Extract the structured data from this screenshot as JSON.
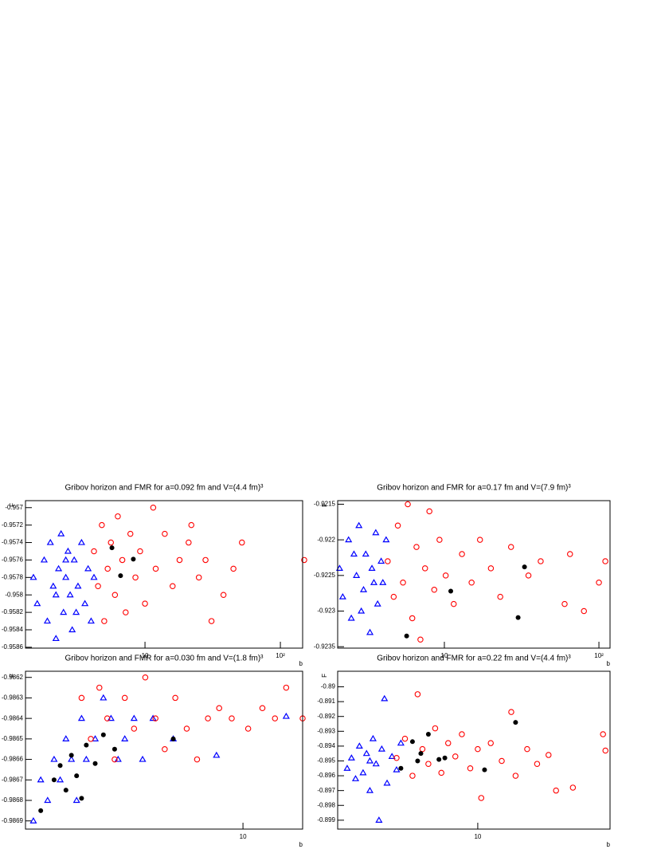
{
  "chart_data": [
    {
      "type": "scatter",
      "title": "Gribov horizon and FMR for a=0.092 fm and V=(4.4 fm)³",
      "x_label": "b",
      "y_label": "F",
      "xscale": "log",
      "xlim": [
        1.31,
        146
      ],
      "xticks": [
        {
          "value": 10,
          "label": "10"
        },
        {
          "value": 100,
          "label": "10²"
        }
      ],
      "ylim": [
        -0.95861,
        -0.95692
      ],
      "yticks": [
        -0.957,
        -0.9572,
        -0.9574,
        -0.9576,
        -0.9578,
        -0.958,
        -0.9582,
        -0.9584,
        -0.9586
      ],
      "series": [
        {
          "color": "#0000ff",
          "marker": "triangle",
          "x": [
            1.5,
            1.6,
            1.8,
            1.9,
            2.0,
            2.1,
            2.2,
            2.3,
            2.4,
            2.5,
            2.6,
            2.7,
            2.8,
            2.9,
            3.0,
            3.2,
            3.4,
            3.6,
            3.8,
            4.0,
            4.2,
            2.2,
            2.6,
            3.1
          ],
          "values": [
            -0.9578,
            -0.9581,
            -0.9576,
            -0.9583,
            -0.9574,
            -0.9579,
            -0.9585,
            -0.9577,
            -0.9573,
            -0.9582,
            -0.9578,
            -0.9575,
            -0.958,
            -0.9584,
            -0.9576,
            -0.9579,
            -0.9574,
            -0.9581,
            -0.9577,
            -0.9583,
            -0.9578,
            -0.958,
            -0.9576,
            -0.9582
          ]
        },
        {
          "color": "#ff0000",
          "marker": "circle",
          "x": [
            4.2,
            4.5,
            4.8,
            5.0,
            5.3,
            5.6,
            6.0,
            6.3,
            6.8,
            7.2,
            7.8,
            8.5,
            9.2,
            10,
            11.5,
            12,
            14,
            16,
            18,
            21,
            25,
            28,
            31,
            38,
            45,
            52,
            150,
            22
          ],
          "values": [
            -0.9575,
            -0.9579,
            -0.9572,
            -0.9583,
            -0.9577,
            -0.9574,
            -0.958,
            -0.9571,
            -0.9576,
            -0.9582,
            -0.9573,
            -0.9578,
            -0.9575,
            -0.9581,
            -0.957,
            -0.9577,
            -0.9573,
            -0.9579,
            -0.9576,
            -0.9574,
            -0.9578,
            -0.9576,
            -0.9583,
            -0.958,
            -0.9577,
            -0.9574,
            -0.9576,
            -0.9572
          ]
        },
        {
          "color": "#000000",
          "marker": "dot",
          "x": [
            5.7,
            6.6,
            8.2
          ],
          "values": [
            -0.95746,
            -0.95778,
            -0.95759
          ]
        }
      ]
    },
    {
      "type": "scatter",
      "title": "Gribov horizon and FMR for a=0.17 fm and V=(7.9 fm)³",
      "x_label": "b",
      "y_label": "F",
      "xscale": "log",
      "xlim": [
        2.04,
        118
      ],
      "xticks": [
        {
          "value": 10,
          "label": "10"
        },
        {
          "value": 100,
          "label": "10²"
        }
      ],
      "ylim": [
        -0.92352,
        -0.92145
      ],
      "yticks": [
        -0.9215,
        -0.922,
        -0.9225,
        -0.923,
        -0.9235
      ],
      "series": [
        {
          "color": "#0000ff",
          "marker": "triangle",
          "x": [
            2.1,
            2.2,
            2.4,
            2.5,
            2.7,
            2.8,
            3.0,
            3.1,
            3.3,
            3.4,
            3.6,
            3.7,
            3.9,
            4.0,
            4.2,
            2.9,
            3.5,
            2.6
          ],
          "values": [
            -0.9224,
            -0.9228,
            -0.922,
            -0.9231,
            -0.9225,
            -0.9218,
            -0.9227,
            -0.9222,
            -0.9233,
            -0.9224,
            -0.9219,
            -0.9229,
            -0.9223,
            -0.9226,
            -0.922,
            -0.923,
            -0.9226,
            -0.9222
          ]
        },
        {
          "color": "#ff0000",
          "marker": "circle",
          "x": [
            4.3,
            4.7,
            5.0,
            5.4,
            5.8,
            6.2,
            6.6,
            7.0,
            7.5,
            8.0,
            8.6,
            9.3,
            10.2,
            11.5,
            13,
            15,
            17,
            20,
            23,
            27,
            35,
            42,
            60,
            65,
            80,
            100,
            110
          ],
          "values": [
            -0.9223,
            -0.9228,
            -0.9218,
            -0.9226,
            -0.9215,
            -0.9231,
            -0.9221,
            -0.9234,
            -0.9224,
            -0.9216,
            -0.9227,
            -0.922,
            -0.9225,
            -0.9229,
            -0.9222,
            -0.9226,
            -0.922,
            -0.9224,
            -0.9228,
            -0.9221,
            -0.9225,
            -0.9223,
            -0.9229,
            -0.9222,
            -0.923,
            -0.9226,
            -0.9223
          ]
        },
        {
          "color": "#000000",
          "marker": "dot",
          "x": [
            5.7,
            11,
            30,
            33
          ],
          "values": [
            -0.92335,
            -0.92272,
            -0.92309,
            -0.92238
          ]
        }
      ]
    },
    {
      "type": "scatter",
      "title": "Gribov horizon and FMR for a=0.030 fm and V=(1.8 fm)³",
      "x_label": "b",
      "y_label": "F",
      "xscale": "log",
      "xlim": [
        1.3,
        17.5
      ],
      "xticks": [
        {
          "value": 10,
          "label": "10"
        }
      ],
      "ylim": [
        -0.98694,
        -0.98617
      ],
      "yticks": [
        -0.9862,
        -0.9863,
        -0.9864,
        -0.9865,
        -0.9866,
        -0.9867,
        -0.9868,
        -0.9869
      ],
      "series": [
        {
          "color": "#0000ff",
          "marker": "triangle",
          "x": [
            1.4,
            1.5,
            1.6,
            1.7,
            1.8,
            1.9,
            2.0,
            2.1,
            2.2,
            2.3,
            2.5,
            2.7,
            2.9,
            3.1,
            3.3,
            3.6,
            3.9,
            4.3,
            5.2,
            7.8,
            15
          ],
          "values": [
            -0.9869,
            -0.9867,
            -0.9868,
            -0.9866,
            -0.9867,
            -0.9865,
            -0.9866,
            -0.9868,
            -0.9864,
            -0.9866,
            -0.9865,
            -0.9863,
            -0.9864,
            -0.9866,
            -0.9865,
            -0.9864,
            -0.9866,
            -0.9864,
            -0.9865,
            -0.98658,
            -0.98639
          ]
        },
        {
          "color": "#ff0000",
          "marker": "circle",
          "x": [
            2.2,
            2.4,
            2.6,
            2.8,
            3.0,
            3.3,
            3.6,
            4.0,
            4.4,
            4.8,
            5.3,
            5.9,
            6.5,
            7.2,
            8.0,
            9.0,
            10.5,
            12,
            13.5,
            15,
            17.5
          ],
          "values": [
            -0.9863,
            -0.9865,
            -0.98625,
            -0.9864,
            -0.9866,
            -0.9863,
            -0.98645,
            -0.9862,
            -0.9864,
            -0.98655,
            -0.9863,
            -0.98645,
            -0.9866,
            -0.9864,
            -0.98635,
            -0.9864,
            -0.98645,
            -0.98635,
            -0.9864,
            -0.98625,
            -0.9864
          ]
        },
        {
          "color": "#000000",
          "marker": "dot",
          "x": [
            1.5,
            1.7,
            1.8,
            1.9,
            2.0,
            2.1,
            2.2,
            2.3,
            2.5,
            2.7,
            3.0,
            5.2
          ],
          "values": [
            -0.98685,
            -0.9867,
            -0.98663,
            -0.98675,
            -0.98658,
            -0.98668,
            -0.98679,
            -0.98653,
            -0.98662,
            -0.98648,
            -0.98655,
            -0.9865
          ]
        }
      ]
    },
    {
      "type": "scatter",
      "title": "Gribov horizon and FMR for a=0.22 fm and V=(4.4 fm)³",
      "x_label": "b",
      "y_label": "F",
      "xscale": "log",
      "xlim": [
        1.4,
        64
      ],
      "xticks": [
        {
          "value": 10,
          "label": "10"
        }
      ],
      "ylim": [
        -0.8996,
        -0.88895
      ],
      "yticks": [
        -0.89,
        -0.891,
        -0.892,
        -0.893,
        -0.894,
        -0.895,
        -0.896,
        -0.897,
        -0.898,
        -0.899
      ],
      "series": [
        {
          "color": "#0000ff",
          "marker": "triangle",
          "x": [
            1.6,
            1.7,
            1.8,
            1.9,
            2.0,
            2.1,
            2.2,
            2.3,
            2.4,
            2.5,
            2.6,
            2.7,
            2.8,
            3.0,
            3.2,
            3.4,
            2.2
          ],
          "values": [
            -0.8955,
            -0.8948,
            -0.8962,
            -0.894,
            -0.8958,
            -0.8945,
            -0.897,
            -0.8935,
            -0.8952,
            -0.899,
            -0.8942,
            -0.8908,
            -0.8965,
            -0.8947,
            -0.8956,
            -0.8938,
            -0.895
          ]
        },
        {
          "color": "#ff0000",
          "marker": "circle",
          "x": [
            3.2,
            3.6,
            4.0,
            4.3,
            4.6,
            5.0,
            5.5,
            6.0,
            6.6,
            7.3,
            8.0,
            9.0,
            10,
            10.5,
            12,
            14,
            16,
            17,
            20,
            23,
            27,
            30,
            38,
            58,
            60
          ],
          "values": [
            -0.8948,
            -0.8935,
            -0.896,
            -0.8905,
            -0.8942,
            -0.8952,
            -0.8928,
            -0.8958,
            -0.8938,
            -0.8947,
            -0.8932,
            -0.8955,
            -0.8942,
            -0.8975,
            -0.8938,
            -0.895,
            -0.8917,
            -0.896,
            -0.8942,
            -0.8952,
            -0.8946,
            -0.897,
            -0.8968,
            -0.8932,
            -0.8943
          ]
        },
        {
          "color": "#000000",
          "marker": "dot",
          "x": [
            3.4,
            4.0,
            4.5,
            5.0,
            5.8,
            6.3,
            4.3,
            11,
            17
          ],
          "values": [
            -0.8955,
            -0.8937,
            -0.8945,
            -0.8932,
            -0.8949,
            -0.8948,
            -0.895,
            -0.8956,
            -0.8924
          ]
        }
      ]
    }
  ]
}
